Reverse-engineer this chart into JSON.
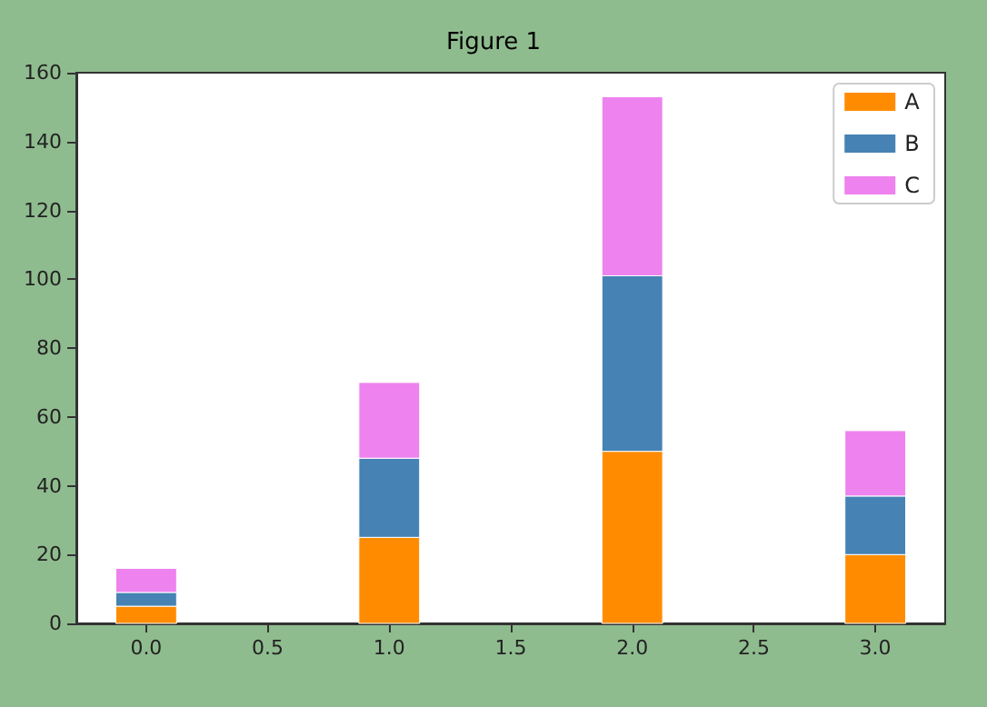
{
  "chart_data": {
    "type": "bar",
    "title": "Figure 1",
    "stacked": true,
    "x": [
      0,
      1,
      2,
      3
    ],
    "series": [
      {
        "name": "A",
        "color": "#ff8c00",
        "values": [
          5,
          25,
          50,
          20
        ]
      },
      {
        "name": "B",
        "color": "#4682b4",
        "values": [
          4,
          23,
          51,
          17
        ]
      },
      {
        "name": "C",
        "color": "#ee82ee",
        "values": [
          7,
          22,
          52,
          19
        ]
      }
    ],
    "xlim": [
      -0.2875,
      3.2875
    ],
    "xticks": [
      {
        "value": 0,
        "label": "0.0"
      },
      {
        "value": 0.5,
        "label": "0.5"
      },
      {
        "value": 1,
        "label": "1.0"
      },
      {
        "value": 1.5,
        "label": "1.5"
      },
      {
        "value": 2,
        "label": "2.0"
      },
      {
        "value": 2.5,
        "label": "2.5"
      },
      {
        "value": 3,
        "label": "3.0"
      }
    ],
    "ylim": [
      0,
      160
    ],
    "yticks": [
      0,
      20,
      40,
      60,
      80,
      100,
      120,
      140,
      160
    ],
    "grid": false,
    "legend": "top right"
  }
}
